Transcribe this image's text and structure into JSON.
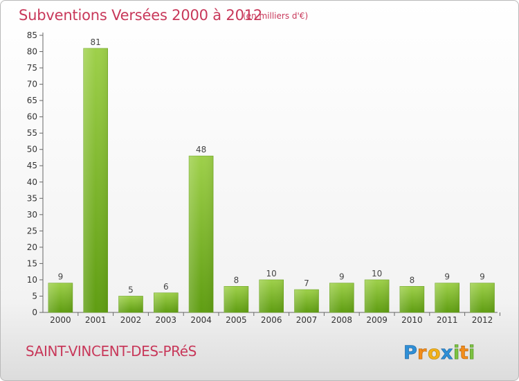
{
  "header": {
    "title": "Subventions Versées 2000 à 2012",
    "subtitle": "(en milliers d'€)"
  },
  "footer": {
    "place": "SAINT-VINCENT-DES-PRéS",
    "logo": "Proxiti"
  },
  "colors": {
    "title": "#c8385a",
    "bar_top": "#9ed04a",
    "bar_bottom": "#5f9d12"
  },
  "chart_data": {
    "type": "bar",
    "title": "Subventions Versées 2000 à 2012",
    "subtitle": "(en milliers d'€)",
    "categories": [
      "2000",
      "2001",
      "2002",
      "2003",
      "2004",
      "2005",
      "2006",
      "2007",
      "2008",
      "2009",
      "2010",
      "2011",
      "2012"
    ],
    "values": [
      9,
      81,
      5,
      6,
      48,
      8,
      10,
      7,
      9,
      10,
      8,
      9,
      9
    ],
    "ylim": [
      0,
      85
    ],
    "yticks": [
      0,
      5,
      10,
      15,
      20,
      25,
      30,
      35,
      40,
      45,
      50,
      55,
      60,
      65,
      70,
      75,
      80,
      85
    ],
    "grid": false,
    "data_labels": true
  }
}
